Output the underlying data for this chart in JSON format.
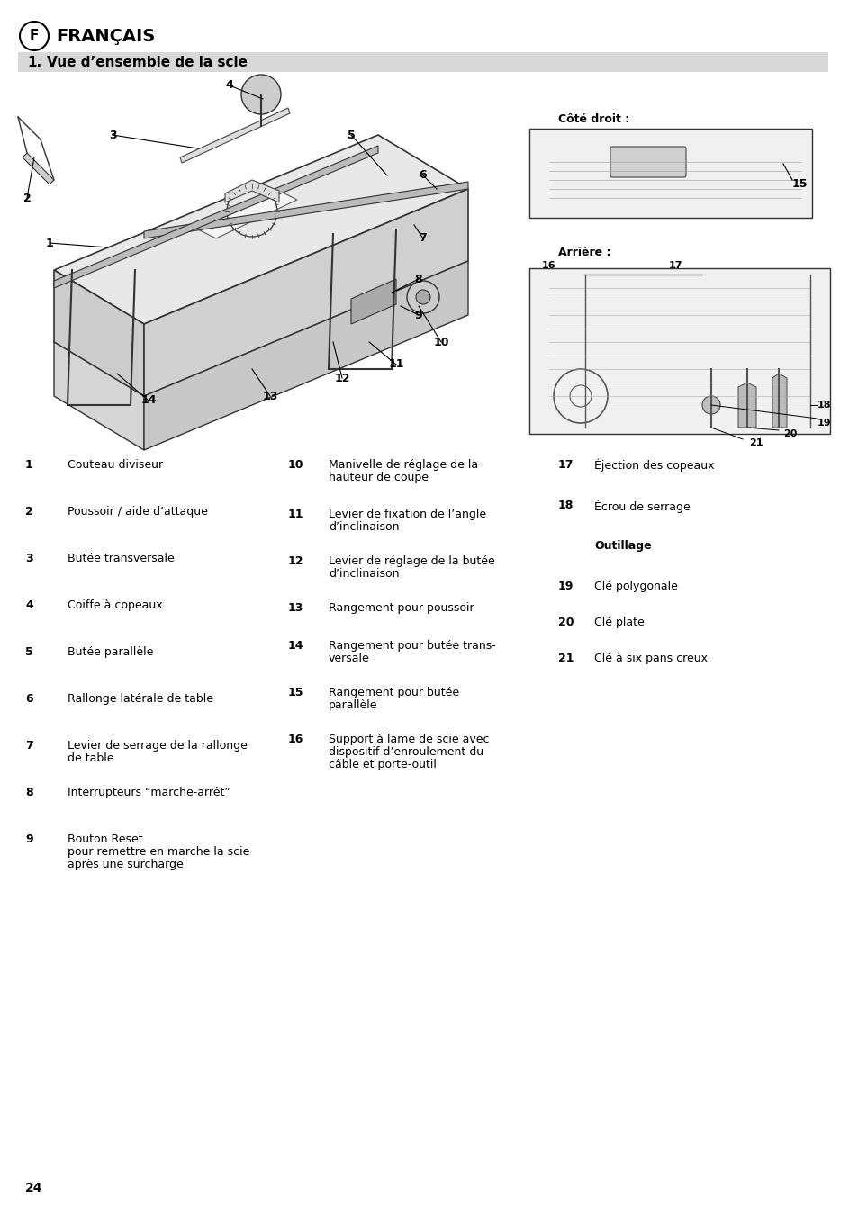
{
  "page_bg": "#ffffff",
  "header_circle_label": "F",
  "header_title": "FRANÇAIS",
  "section_bg": "#d8d8d8",
  "section_num": "1.",
  "section_title": "Vue d’ensemble de la scie",
  "side_label_right": "Côté droit :",
  "side_label_back": "Arrière :",
  "items_col1": [
    [
      "1",
      "Couteau diviseur"
    ],
    [
      "2",
      "Poussoir / aide d’attaque"
    ],
    [
      "3",
      "Butée transversale"
    ],
    [
      "4",
      "Coiffe à copeaux"
    ],
    [
      "5",
      "Butée parallèle"
    ],
    [
      "6",
      "Rallonge latérale de table"
    ],
    [
      "7",
      "Levier de serrage de la rallonge\nde table"
    ],
    [
      "8",
      "Interrupteurs “marche-arrêt”"
    ],
    [
      "9",
      "Bouton Reset\npour remettre en marche la scie\naprès une surcharge"
    ]
  ],
  "items_col2": [
    [
      "10",
      "Manivelle de réglage de la\nhauteur de coupe"
    ],
    [
      "11",
      "Levier de fixation de l’angle\nd’inclinaison"
    ],
    [
      "12",
      "Levier de réglage de la butée\nd’inclinaison"
    ],
    [
      "13",
      "Rangement pour poussoir"
    ],
    [
      "14",
      "Rangement pour butée trans-\nversale"
    ],
    [
      "15",
      "Rangement pour butée\nparallèle"
    ],
    [
      "16",
      "Support à lame de scie avec\ndispositif d’enroulement du\ncâble et porte-outil"
    ]
  ],
  "items_col3": [
    [
      "17",
      "Éjection des copeaux"
    ],
    [
      "18",
      "Écrou de serrage"
    ],
    [
      "outillage_title",
      "Outillage"
    ],
    [
      "19",
      "Clé polygonale"
    ],
    [
      "20",
      "Clé plate"
    ],
    [
      "21",
      "Clé à six pans creux"
    ]
  ],
  "page_num": "24"
}
